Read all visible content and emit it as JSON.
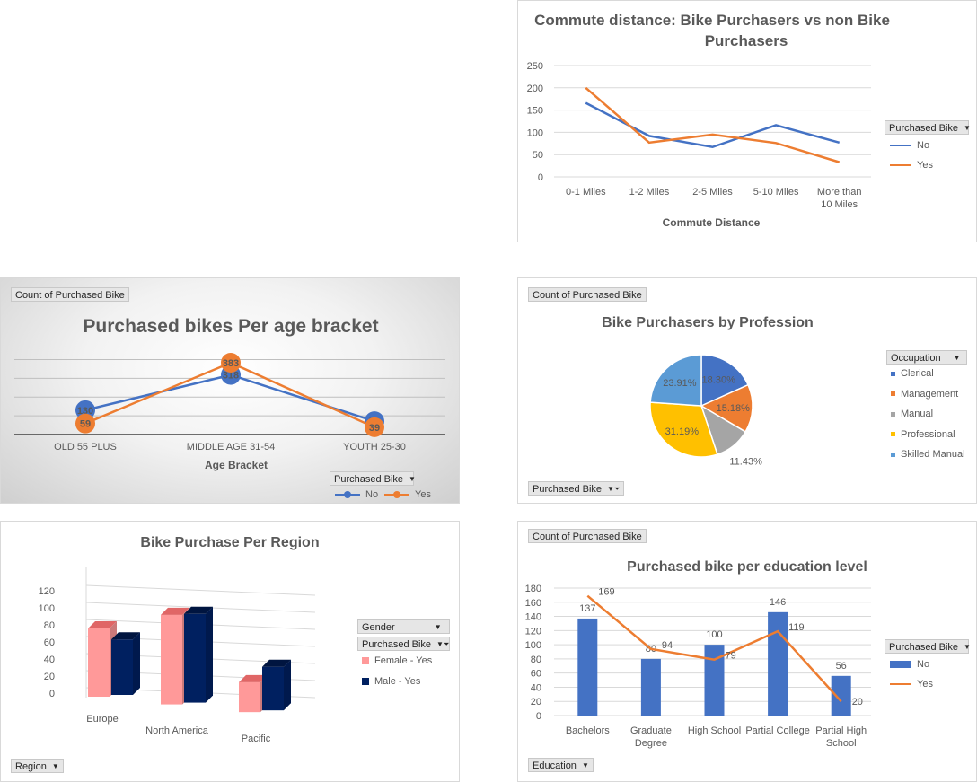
{
  "panels": {
    "commute": {
      "title_line1": "Commute distance: Bike Purchasers vs non Bike",
      "title_line2": "Purchasers",
      "xlabel": "Commute Distance",
      "filter_label": "Purchased Bike",
      "legend": [
        "No",
        "Yes"
      ]
    },
    "age": {
      "field_button": "Count of Purchased Bike",
      "title": "Purchased bikes Per age bracket",
      "xlabel": "Age Bracket",
      "filter_label": "Purchased Bike",
      "legend": [
        "No",
        "Yes"
      ]
    },
    "profession": {
      "field_button": "Count of Purchased Bike",
      "title": "Bike Purchasers by Profession",
      "filter_label": "Occupation",
      "bottom_button": "Purchased Bike"
    },
    "region": {
      "title": "Bike Purchase Per Region",
      "filter1": "Gender",
      "filter2": "Purchased Bike",
      "legend": [
        "Female - Yes",
        "Male - Yes"
      ],
      "bottom_button": "Region"
    },
    "education": {
      "field_button": "Count of Purchased Bike",
      "title": "Purchased  bike per education level",
      "filter_label": "Purchased Bike",
      "legend": [
        "No",
        "Yes"
      ],
      "bottom_button": "Education"
    }
  },
  "colors": {
    "blue": "#4472c4",
    "orange": "#ed7d31",
    "gray": "#a5a5a5",
    "yellow": "#ffc000",
    "lightblue": "#5b9bd5",
    "pink": "#ff9999",
    "navy": "#002060"
  },
  "chart_data": [
    {
      "type": "line",
      "title": "Commute distance: Bike Purchasers vs non Bike Purchasers",
      "xlabel": "Commute Distance",
      "ylabel": "",
      "categories": [
        "0-1 Miles",
        "1-2 Miles",
        "2-5 Miles",
        "5-10 Miles",
        "More than 10 Miles"
      ],
      "series": [
        {
          "name": "No",
          "values": [
            166,
            92,
            67,
            116,
            77
          ]
        },
        {
          "name": "Yes",
          "values": [
            200,
            77,
            95,
            76,
            33
          ]
        }
      ],
      "ylim": [
        0,
        250
      ],
      "yticks": [
        0,
        50,
        100,
        150,
        200,
        250
      ],
      "grid": true,
      "legend": "right"
    },
    {
      "type": "line",
      "title": "Purchased bikes Per age bracket",
      "xlabel": "Age Bracket",
      "ylabel": "",
      "categories": [
        "OLD 55 PLUS",
        "MIDDLE AGE 31-54",
        "YOUTH 25-30"
      ],
      "series": [
        {
          "name": "No",
          "values": [
            130,
            318,
            71
          ]
        },
        {
          "name": "Yes",
          "values": [
            59,
            383,
            39
          ]
        }
      ],
      "ylim": [
        0,
        450
      ],
      "grid": true,
      "legend": "bottom-right"
    },
    {
      "type": "pie",
      "title": "Bike Purchasers by Profession",
      "labels": [
        "Clerical",
        "Management",
        "Manual",
        "Professional",
        "Skilled Manual"
      ],
      "values": [
        18.3,
        15.18,
        11.43,
        31.19,
        23.91
      ],
      "value_labels": [
        "18.30%",
        "15.18%",
        "11.43%",
        "31.19%",
        "23.91%"
      ],
      "legend": "right"
    },
    {
      "type": "bar",
      "title": "Bike Purchase Per Region",
      "categories": [
        "Europe",
        "North America",
        "Pacific"
      ],
      "series": [
        {
          "name": "Female - Yes",
          "values": [
            80,
            105,
            35
          ]
        },
        {
          "name": "Male - Yes",
          "values": [
            65,
            104,
            51
          ]
        }
      ],
      "ylim": [
        0,
        120
      ],
      "yticks": [
        0,
        20,
        40,
        60,
        80,
        100,
        120
      ],
      "grid": true,
      "legend": "right"
    },
    {
      "type": "bar",
      "title": "Purchased  bike per education level",
      "categories": [
        "Bachelors",
        "Graduate Degree",
        "High School",
        "Partial College",
        "Partial High School"
      ],
      "series": [
        {
          "name": "No",
          "type": "bar",
          "values": [
            137,
            80,
            100,
            146,
            56
          ]
        },
        {
          "name": "Yes",
          "type": "line",
          "values": [
            169,
            94,
            79,
            119,
            20
          ]
        }
      ],
      "ylim": [
        0,
        180
      ],
      "yticks": [
        0,
        20,
        40,
        60,
        80,
        100,
        120,
        140,
        160,
        180
      ],
      "grid": true,
      "legend": "right"
    }
  ]
}
